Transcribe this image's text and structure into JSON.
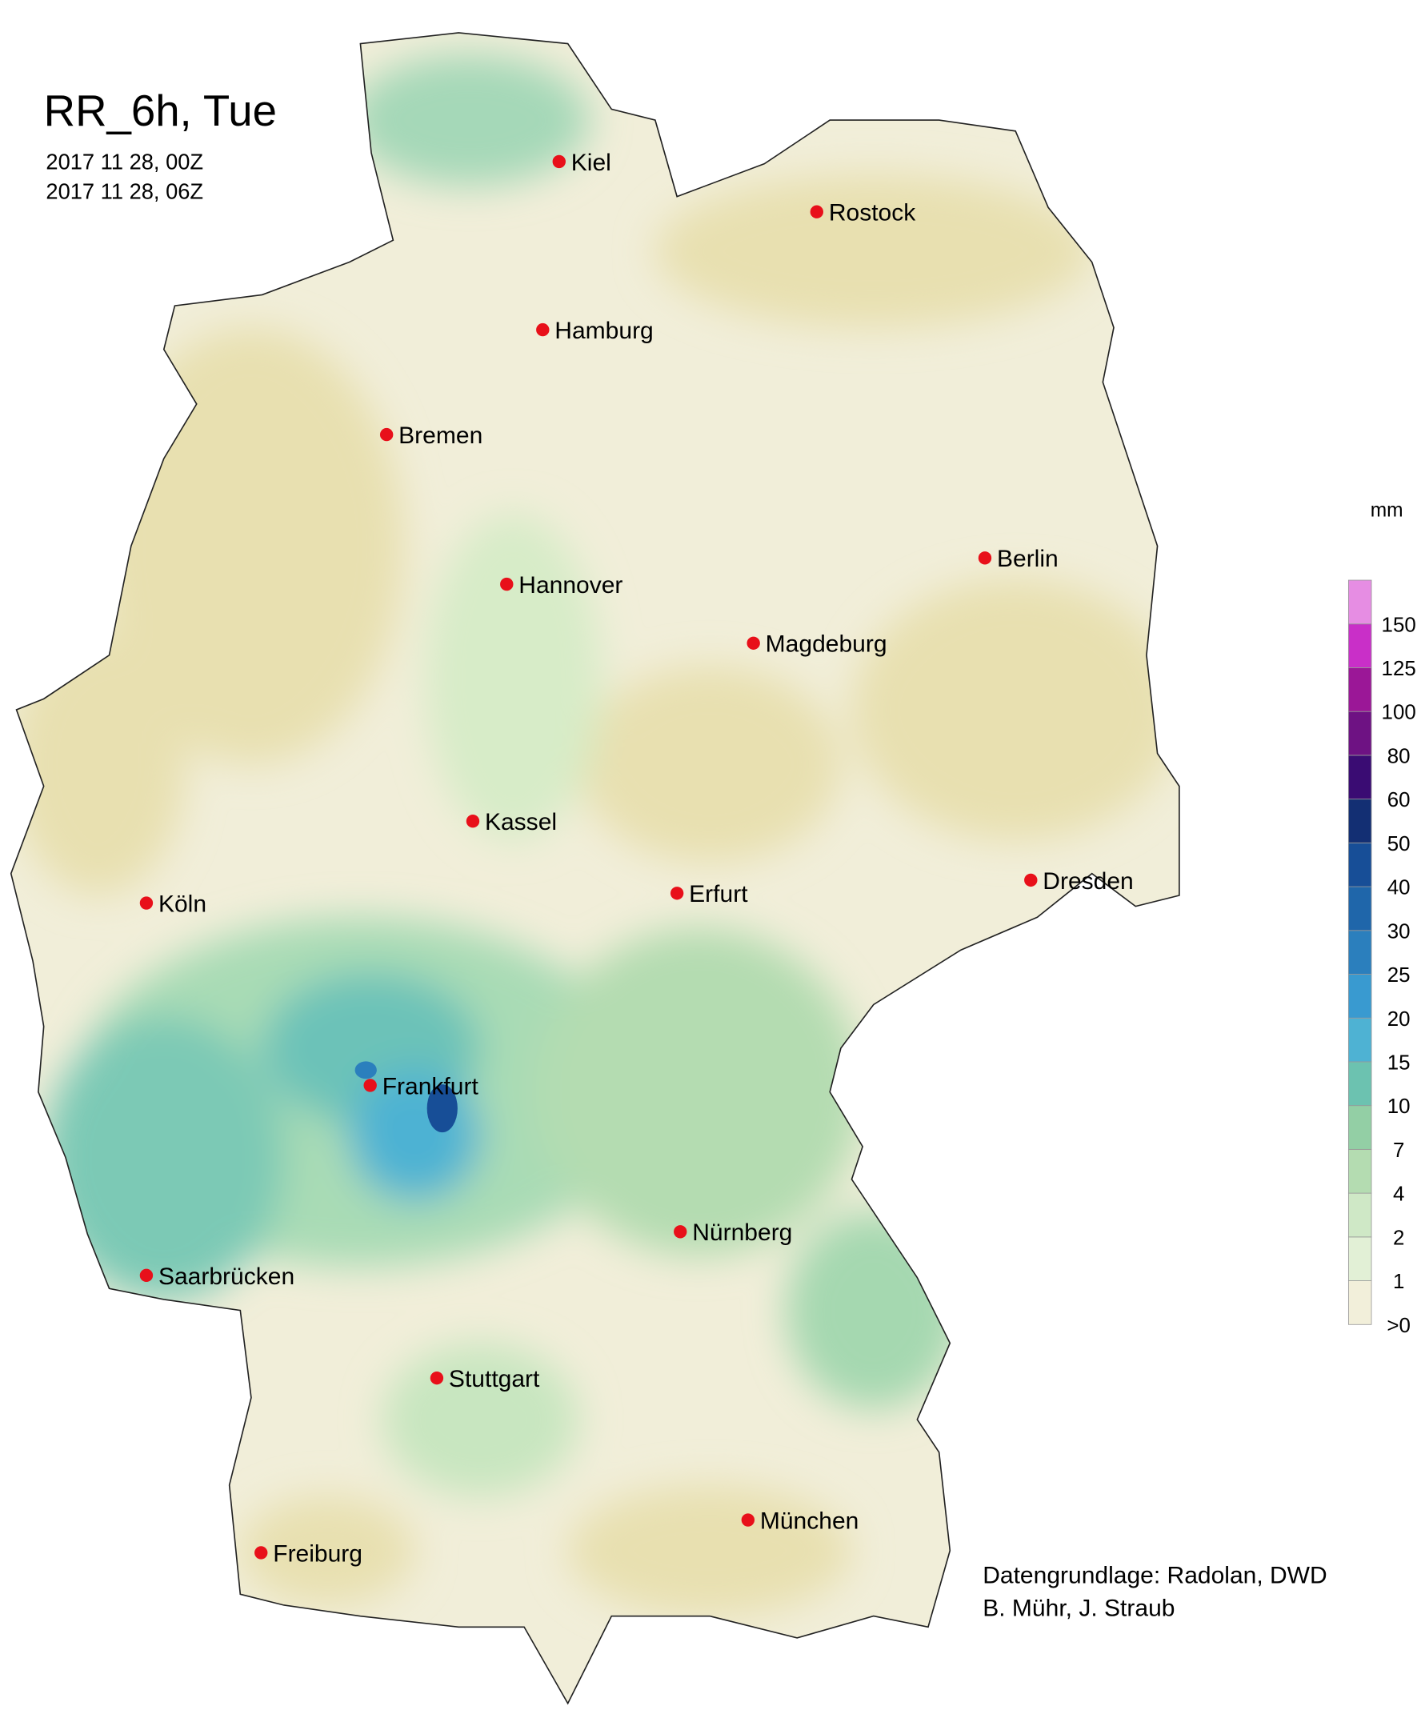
{
  "header": {
    "title": "RR_6h, Tue",
    "times": [
      "2017 11 28, 00Z",
      "2017 11 28, 06Z"
    ]
  },
  "cities": [
    "Kiel",
    "Rostock",
    "Hamburg",
    "Bremen",
    "Hannover",
    "Berlin",
    "Magdeburg",
    "Kassel",
    "Köln",
    "Erfurt",
    "Dresden",
    "Frankfurt",
    "Nürnberg",
    "Saarbrücken",
    "Stuttgart",
    "Freiburg",
    "München"
  ],
  "legend": {
    "unit": "mm",
    "levels": [
      ">0",
      1,
      2,
      4,
      7,
      10,
      15,
      20,
      25,
      30,
      40,
      50,
      60,
      80,
      100,
      125,
      150
    ],
    "colors": [
      "#f2efda",
      "#e2f0d6",
      "#cfe8c6",
      "#b4dcb1",
      "#93cfa5",
      "#6cc2b0",
      "#4eb2d3",
      "#399ad0",
      "#2b7fbd",
      "#1f66aa",
      "#174e97",
      "#132f73",
      "#3a0c73",
      "#6e1283",
      "#9b1797",
      "#c92fc8",
      "#e68de3"
    ]
  },
  "credits": [
    "Datengrundlage: Radolan, DWD",
    "B. Mühr, J. Straub"
  ]
}
